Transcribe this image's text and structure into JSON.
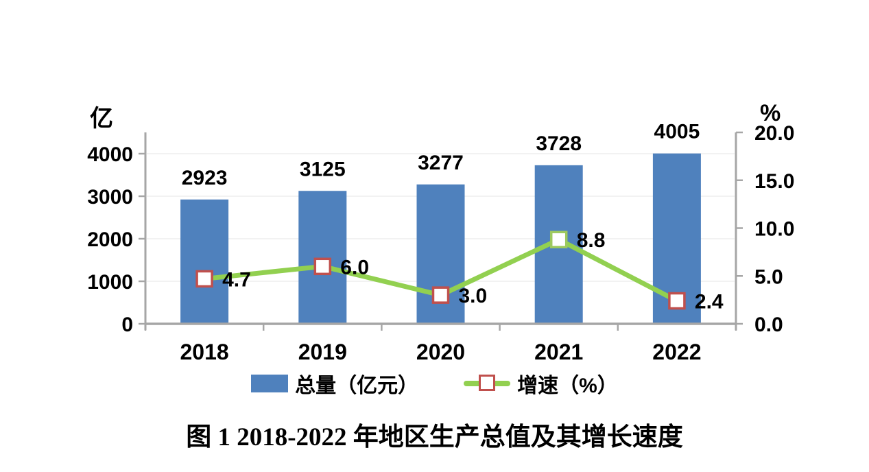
{
  "page": {
    "background": "#ffffff"
  },
  "chart_data": {
    "type": "bar",
    "subtype": "bar-line-combo",
    "title": "图 1 2018-2022 年地区生产总值及其增长速度",
    "categories": [
      "2018",
      "2019",
      "2020",
      "2021",
      "2022"
    ],
    "series": [
      {
        "name": "总量（亿元）",
        "type": "bar",
        "axis": "left",
        "values": [
          2923,
          3125,
          3277,
          3728,
          4005
        ],
        "labels": [
          "2923",
          "3125",
          "3277",
          "3728",
          "4005"
        ],
        "color": "#4f81bd"
      },
      {
        "name": "增速（%）",
        "type": "line",
        "axis": "right",
        "values": [
          4.7,
          6.0,
          3.0,
          8.8,
          2.4
        ],
        "labels": [
          "4.7",
          "6.0",
          "3.0",
          "8.8",
          "2.4"
        ],
        "line_color": "#92d050",
        "marker_fill": "#ffffff",
        "marker_border_colors": [
          "#c0504d",
          "#c0504d",
          "#c0504d",
          "#9dc95e",
          "#c0504d"
        ]
      }
    ],
    "left_axis": {
      "unit_label": "亿",
      "min": 0,
      "max": 4500,
      "tick_interval": 1000,
      "ticks": [
        "0",
        "1000",
        "2000",
        "3000",
        "4000"
      ]
    },
    "right_axis": {
      "unit_label": "%",
      "min": 0,
      "max": 20,
      "tick_interval": 5,
      "ticks": [
        "0.0",
        "5.0",
        "10.0",
        "15.0",
        "20.0"
      ]
    },
    "axis_color": "#a6a6a6",
    "gridline_color": "#f2f2f2",
    "grid": "on",
    "legend_position": "bottom",
    "legend": [
      {
        "label": "总量（亿元）",
        "swatch": "bar"
      },
      {
        "label": "增速（%）",
        "swatch": "line-marker"
      }
    ]
  }
}
